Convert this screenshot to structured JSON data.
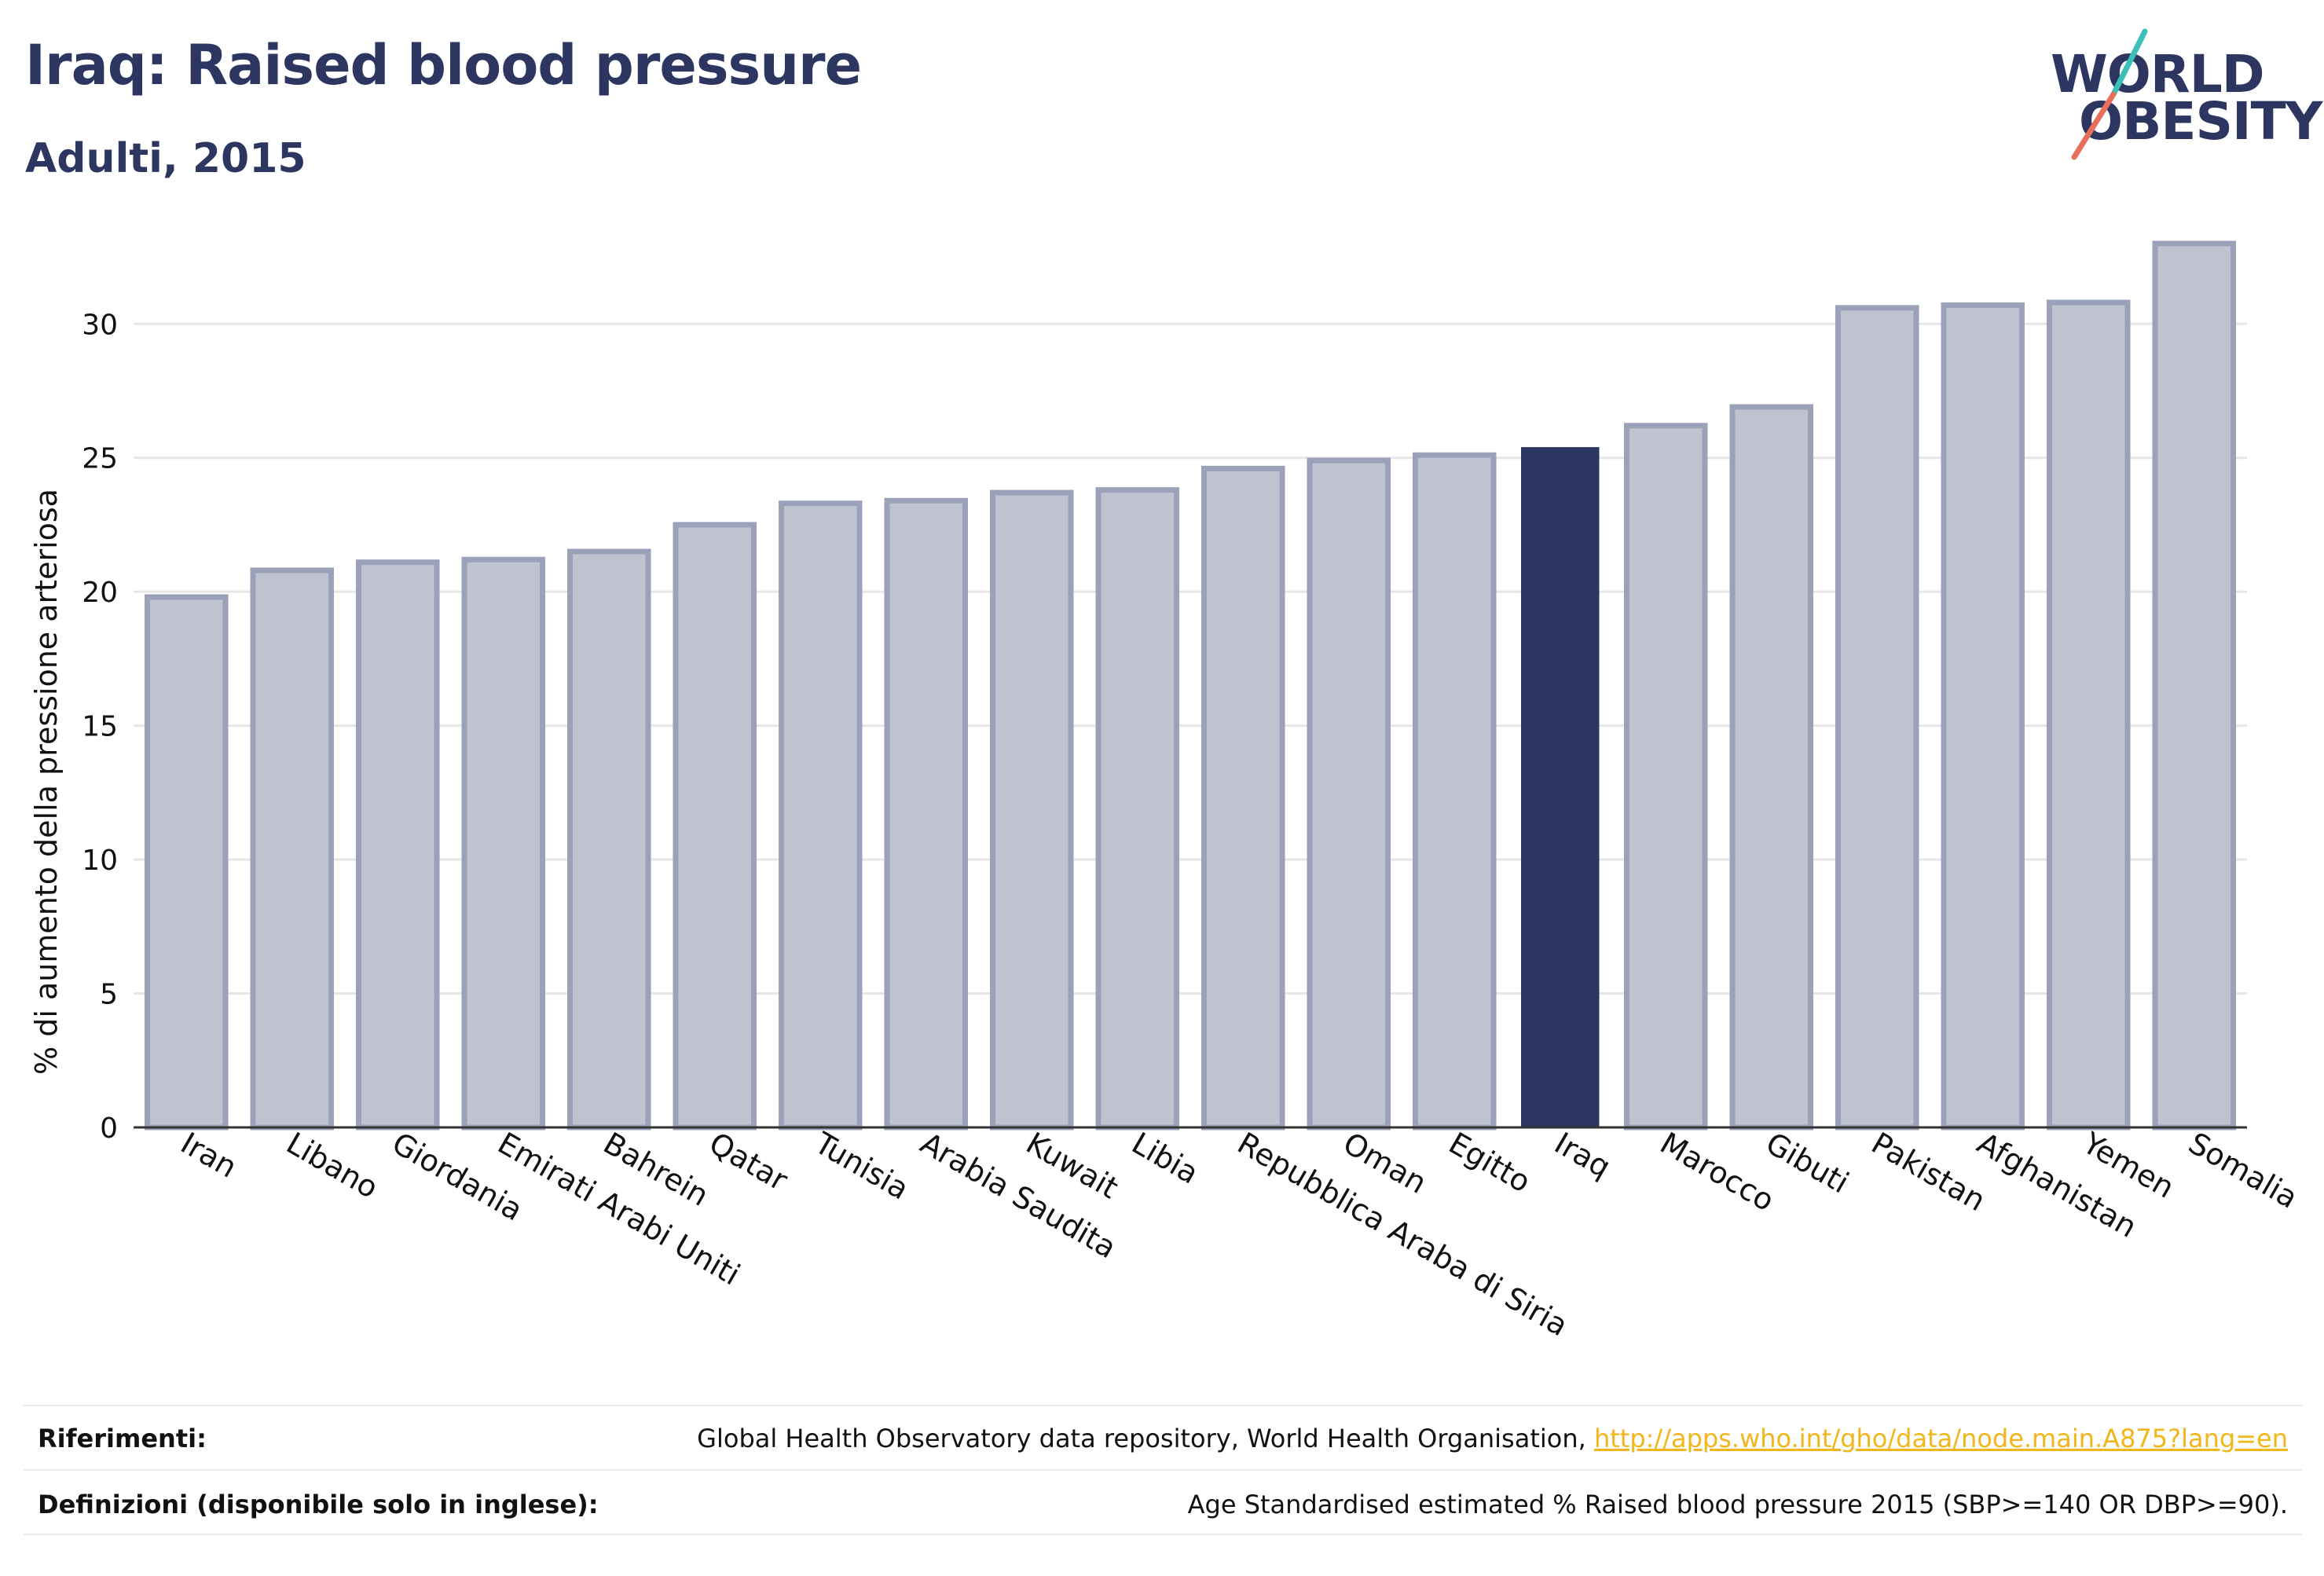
{
  "header": {
    "title": "Iraq: Raised blood pressure",
    "subtitle": "Adulti, 2015"
  },
  "logo": {
    "line1": "WORLD",
    "line2": "OBESITY",
    "colors": {
      "text": "#2d3561",
      "slash_top": "#3bbfb9",
      "slash_bottom": "#e8705a"
    }
  },
  "chart_data": {
    "type": "bar",
    "ylabel": "% di aumento della pressione arteriosa",
    "xlabel": "",
    "ylim": [
      0,
      33
    ],
    "yticks": [
      0,
      5,
      10,
      15,
      20,
      25,
      30
    ],
    "grid": true,
    "highlight": "Iraq",
    "colors": {
      "bar": "#bfc3d0",
      "bar_edge": "#9ba1b8",
      "highlight": "#2d3561",
      "grid": "#e6e6e6",
      "axis": "#333333"
    },
    "categories": [
      "Iran",
      "Libano",
      "Giordania",
      "Emirati Arabi Uniti",
      "Bahrein",
      "Qatar",
      "Tunisia",
      "Arabia Saudita",
      "Kuwait",
      "Libia",
      "Repubblica Araba di Siria",
      "Oman",
      "Egitto",
      "Iraq",
      "Marocco",
      "Gibuti",
      "Pakistan",
      "Afghanistan",
      "Yemen",
      "Somalia"
    ],
    "values": [
      19.8,
      20.8,
      21.1,
      21.2,
      21.5,
      22.5,
      23.3,
      23.4,
      23.7,
      23.8,
      24.6,
      24.9,
      25.1,
      25.4,
      26.2,
      26.9,
      30.6,
      30.7,
      30.8,
      33.0
    ]
  },
  "footer": {
    "references_label": "Riferimenti:",
    "references_text": "Global Health Observatory data repository, World Health Organisation, ",
    "references_link": "http://apps.who.int/gho/data/node.main.A875?lang=en",
    "definitions_label": "Definizioni (disponibile solo in inglese):",
    "definitions_text": "Age Standardised estimated % Raised blood pressure 2015 (SBP>=140 OR DBP>=90)."
  }
}
